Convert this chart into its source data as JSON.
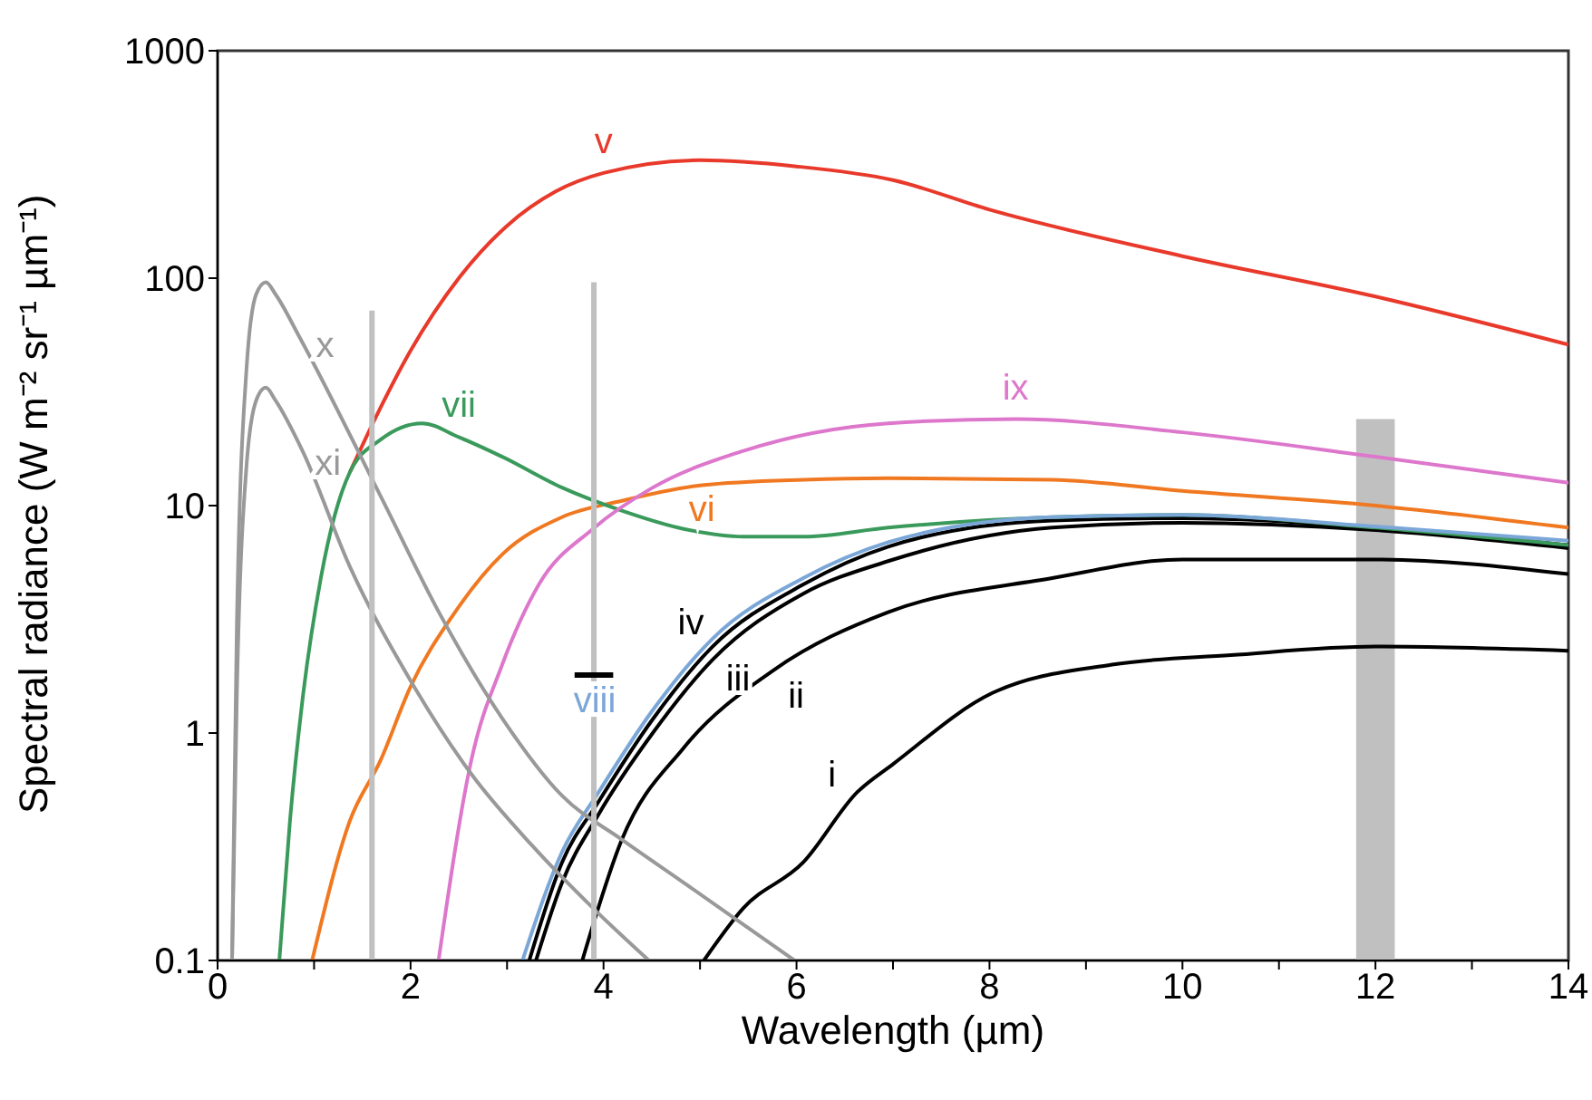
{
  "chart_data": {
    "type": "line",
    "xlabel": "Wavelength (µm)",
    "ylabel": "Spectral radiance (W m⁻² sr⁻¹ µm⁻¹)",
    "log": "y",
    "grid": false,
    "legend": false,
    "marker": "none",
    "line_style": "solid",
    "xlim": [
      0,
      14
    ],
    "xticks": [
      0,
      {
        "value": 1,
        "label": null
      },
      2,
      {
        "value": 3,
        "label": null
      },
      4,
      {
        "value": 5,
        "label": null
      },
      6,
      {
        "value": 7,
        "label": null
      },
      8,
      {
        "value": 9,
        "label": null
      },
      10,
      {
        "value": 11,
        "label": null
      },
      12,
      {
        "value": 13,
        "label": null
      },
      14
    ],
    "ylim": [
      0.1,
      1000
    ],
    "yticks": [
      0.1,
      1,
      10,
      100,
      1000
    ],
    "series": [
      {
        "name": "i",
        "color": "#000000",
        "x": [
          5.04,
          5.45,
          6.07,
          6.63,
          7.0,
          8.03,
          9.27,
          10.5,
          12,
          14
        ],
        "values": [
          0.1,
          0.17,
          0.27,
          0.55,
          0.73,
          1.5,
          2.0,
          2.2,
          2.4,
          2.3
        ]
      },
      {
        "name": "ii",
        "color": "#000000",
        "x": [
          3.78,
          4.19,
          4.83,
          5.77,
          6.95,
          8.65,
          10,
          12,
          14
        ],
        "values": [
          0.1,
          0.34,
          0.86,
          1.9,
          3.4,
          4.8,
          5.8,
          5.8,
          5.0
        ]
      },
      {
        "name": "iii",
        "color": "#000000",
        "x": [
          3.3,
          3.57,
          3.95,
          4.51,
          5.13,
          6.07,
          6.95,
          8.65,
          10,
          12,
          14
        ],
        "values": [
          0.1,
          0.22,
          0.44,
          1.0,
          2.1,
          4.1,
          5.7,
          8.0,
          8.4,
          7.8,
          6.5
        ]
      },
      {
        "name": "iv",
        "color": "#000000",
        "x": [
          3.23,
          3.57,
          3.95,
          4.51,
          5.13,
          6.07,
          6.95,
          8.65,
          10,
          12,
          14
        ],
        "values": [
          0.1,
          0.27,
          0.5,
          1.15,
          2.4,
          4.5,
          6.6,
          8.6,
          8.8,
          8.0,
          6.7
        ]
      },
      {
        "name": "v",
        "color": "#e8392b",
        "x": [
          1.37,
          1.63,
          2,
          2.5,
          3,
          3.5,
          4,
          5,
          6,
          7,
          8,
          10,
          12,
          14
        ],
        "values": [
          14,
          24,
          48,
          100,
          170,
          240,
          290,
          330,
          310,
          270,
          200,
          125,
          83,
          51
        ]
      },
      {
        "name": "vi",
        "color": "#f07820",
        "x": [
          0.98,
          1.37,
          1.69,
          2.0,
          2.44,
          2.95,
          3.57,
          4.19,
          5.02,
          6.07,
          6.95,
          8.65,
          10,
          12,
          14
        ],
        "values": [
          0.1,
          0.41,
          0.76,
          1.6,
          3.3,
          6.1,
          8.9,
          10.5,
          12.3,
          13,
          13.2,
          13,
          11.6,
          10,
          8.0
        ]
      },
      {
        "name": "vii",
        "color": "#3a9a5b",
        "x": [
          0.64,
          0.75,
          0.88,
          1.07,
          1.37,
          1.69,
          2.12,
          2.5,
          2.95,
          3.57,
          4.19,
          4.83,
          5.45,
          6.07,
          6.95,
          8.65,
          10,
          12,
          14
        ],
        "values": [
          0.1,
          0.41,
          1.4,
          4.8,
          14,
          19.5,
          23,
          20,
          16.4,
          12,
          9.5,
          7.9,
          7.3,
          7.3,
          8.0,
          8.9,
          9.1,
          8.0,
          6.7
        ]
      },
      {
        "name": "viii",
        "color": "#7aa6d8",
        "x": [
          3.16,
          3.57,
          3.95,
          4.51,
          5.13,
          6.07,
          6.95,
          8.65,
          10,
          12,
          14
        ],
        "values": [
          0.1,
          0.3,
          0.55,
          1.26,
          2.6,
          4.8,
          6.9,
          8.9,
          9.1,
          8.1,
          7.0
        ]
      },
      {
        "name": "ix",
        "color": "#dd77cc",
        "x": [
          2.29,
          2.63,
          2.95,
          3.33,
          3.89,
          4.51,
          5.45,
          6.95,
          8.27,
          10,
          12,
          14
        ],
        "values": [
          0.1,
          0.76,
          2.0,
          4.5,
          7.9,
          12,
          17.4,
          23,
          24,
          21,
          16.4,
          12.6
        ]
      },
      {
        "name": "x",
        "color": "#999999",
        "x": [
          0.15,
          0.2,
          0.3,
          0.4,
          0.5,
          0.6,
          0.85,
          1.69,
          2.31,
          2.95,
          3.57,
          4.19,
          4.83,
          5.98
        ],
        "values": [
          0.1,
          3,
          40,
          85,
          96,
          85,
          55,
          11,
          3.3,
          1.16,
          0.53,
          0.34,
          0.22,
          0.1
        ]
      },
      {
        "name": "xi",
        "color": "#999999",
        "x": [
          0.15,
          0.2,
          0.3,
          0.4,
          0.5,
          0.6,
          0.88,
          1.37,
          2.0,
          2.63,
          3.26,
          3.89,
          4.47
        ],
        "values": [
          0.1,
          1.5,
          15,
          29,
          33,
          29,
          17.4,
          5.4,
          1.7,
          0.66,
          0.32,
          0.17,
          0.1
        ]
      },
      {
        "color": "#c0c0c0",
        "x": [
          1.6,
          1.6
        ],
        "values": [
          0.1,
          72
        ]
      },
      {
        "color": "#c0c0c0",
        "x": [
          3.9,
          3.9
        ],
        "values": [
          0.1,
          96
        ]
      },
      {
        "color": "#000000",
        "x": [
          3.7,
          4.1
        ],
        "values": [
          1.8,
          1.8
        ]
      },
      {
        "type": "area",
        "color": "#c0c0c0",
        "x": [
          11.8,
          12.2
        ],
        "values": [
          24,
          24
        ]
      }
    ]
  }
}
